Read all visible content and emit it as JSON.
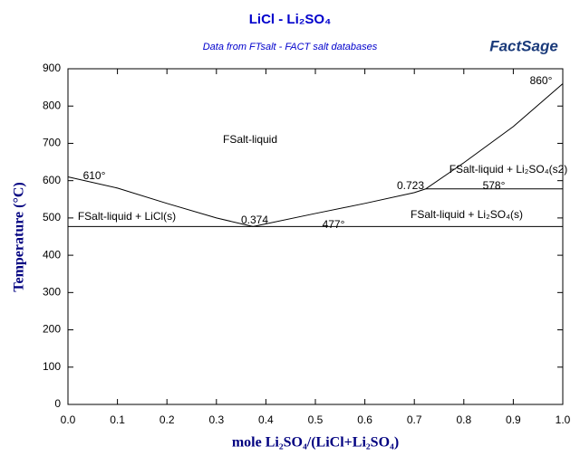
{
  "chart_data": {
    "type": "line",
    "title": "LiCl - Li₂SO₄",
    "subtitle": "Data from FTsalt - FACT salt databases",
    "logo": "FactSage",
    "x_label": "mole Li₂SO₄/(LiCl+Li₂SO₄)",
    "y_label": "Temperature (°C)",
    "xlim": [
      0,
      1
    ],
    "ylim": [
      0,
      900
    ],
    "xticks": [
      {
        "value": 0,
        "label": "0.0"
      },
      0.1,
      0.2,
      0.3,
      0.4,
      0.5,
      0.6,
      0.7,
      0.8,
      0.9,
      {
        "value": 1,
        "label": "1.0"
      }
    ],
    "yticks": [
      0,
      100,
      200,
      300,
      400,
      500,
      600,
      700,
      800,
      900
    ],
    "grid": false,
    "series": [
      {
        "color": "#000000",
        "x": [
          0,
          0.1,
          0.2,
          0.3,
          0.374
        ],
        "values": [
          610,
          580,
          539,
          500,
          477
        ]
      },
      {
        "color": "#000000",
        "x": [
          0.374,
          0.5,
          0.6,
          0.7,
          0.723,
          0.8,
          0.9,
          1
        ],
        "values": [
          477,
          512,
          539,
          568,
          578,
          648,
          745,
          860
        ]
      },
      {
        "color": "#000000",
        "x": [
          0,
          1
        ],
        "values": [
          477,
          477
        ]
      },
      {
        "color": "#000000",
        "x": [
          0.723,
          1
        ],
        "values": [
          578,
          578
        ]
      }
    ],
    "annotations": [
      "610°",
      "860°",
      "477°",
      "578°",
      "0.374",
      "0.723",
      "FSalt-liquid",
      "FSalt-liquid + LiCl(s)",
      "FSalt-liquid + Li₂SO₄(s)",
      "FSalt-liquid + Li₂SO₄(s2)"
    ]
  }
}
